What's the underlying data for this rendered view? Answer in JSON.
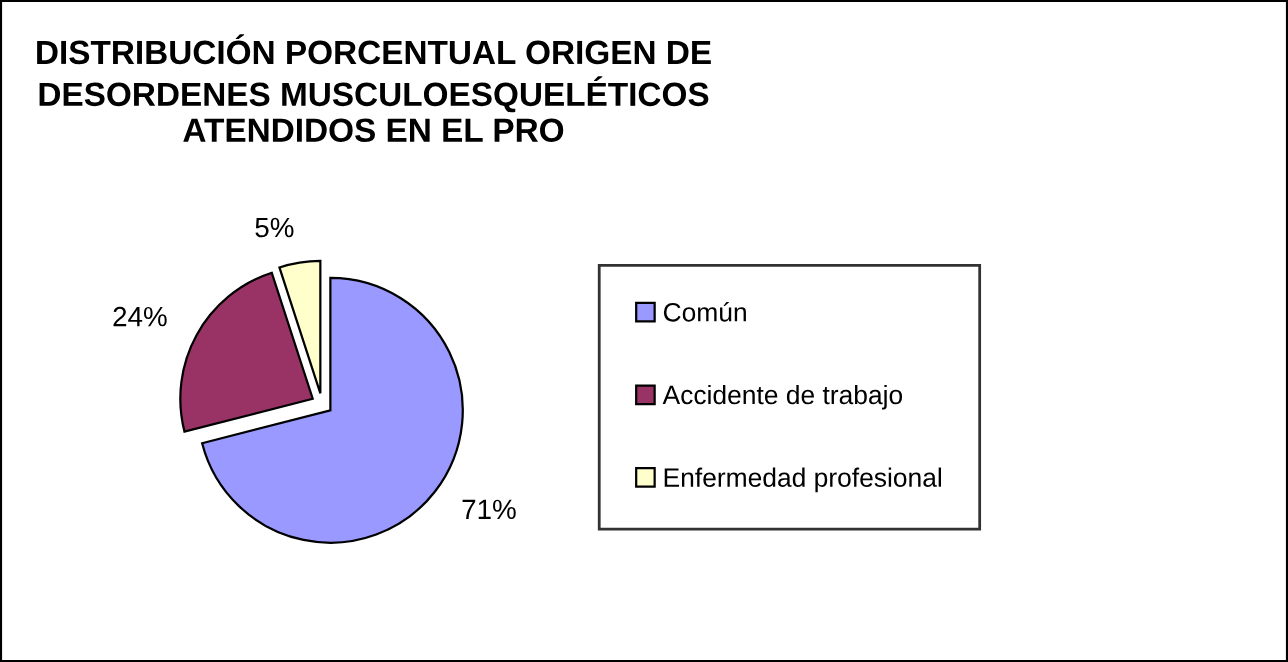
{
  "chart_data": {
    "type": "pie",
    "title": "DISTRIBUCIÓN PORCENTUAL ORIGEN DE DESORDENES MUSCULOESQUELÉTICOS ATENDIDOS EN EL PRO",
    "categories": [
      "Común",
      "Accidente de trabajo",
      "Enfermedad profesional"
    ],
    "values": [
      71,
      24,
      5
    ],
    "colors": [
      "#9999ff",
      "#993366",
      "#ffffcc"
    ],
    "value_labels": [
      "71%",
      "24%",
      "5%"
    ],
    "legend": "right"
  }
}
